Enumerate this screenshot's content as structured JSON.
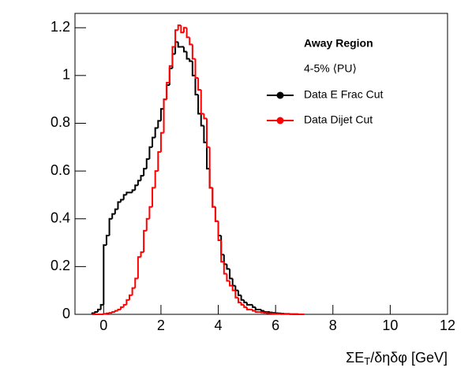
{
  "chart_data": {
    "type": "histogram",
    "x_label": [
      "ΣE",
      "T",
      "/δηδφ [GeV]"
    ],
    "legend_title": "Away Region",
    "legend_subtitle": "4-5% ⟨PU⟩",
    "xlim": [
      -1,
      12
    ],
    "xticks": [
      0,
      2,
      4,
      6,
      8,
      10,
      12
    ],
    "ylim": [
      0,
      1.26
    ],
    "yticks": [
      0,
      0.2,
      0.4,
      0.6,
      0.8,
      1,
      1.2
    ],
    "bins": [
      -0.4,
      -0.3,
      -0.2,
      -0.1,
      0,
      0.1,
      0.2,
      0.3,
      0.4,
      0.5,
      0.6,
      0.7,
      0.8,
      0.9,
      1,
      1.1,
      1.2,
      1.3,
      1.4,
      1.5,
      1.6,
      1.7,
      1.8,
      1.9,
      2,
      2.1,
      2.2,
      2.3,
      2.4,
      2.5,
      2.6,
      2.7,
      2.8,
      2.9,
      3,
      3.1,
      3.2,
      3.3,
      3.4,
      3.5,
      3.6,
      3.7,
      3.8,
      3.9,
      4,
      4.1,
      4.2,
      4.3,
      4.4,
      4.5,
      4.6,
      4.7,
      4.8,
      4.9,
      5,
      5.1,
      5.2,
      5.3,
      5.4,
      5.5,
      5.6,
      5.7,
      5.8,
      5.9,
      6,
      6.1,
      6.2,
      6.3,
      6.4,
      6.5,
      6.6,
      6.7,
      6.8,
      6.9,
      7
    ],
    "series": [
      {
        "name": "Data E Frac Cut",
        "color": "#000000",
        "values": [
          0.005,
          0.01,
          0.02,
          0.04,
          0.29,
          0.33,
          0.4,
          0.42,
          0.44,
          0.47,
          0.48,
          0.5,
          0.51,
          0.51,
          0.52,
          0.54,
          0.56,
          0.58,
          0.61,
          0.65,
          0.7,
          0.74,
          0.78,
          0.81,
          0.86,
          0.9,
          0.96,
          1.03,
          1.09,
          1.14,
          1.12,
          1.12,
          1.1,
          1.07,
          1.06,
          1.0,
          0.92,
          0.84,
          0.79,
          0.72,
          0.61,
          0.53,
          0.45,
          0.39,
          0.33,
          0.25,
          0.21,
          0.19,
          0.15,
          0.12,
          0.1,
          0.08,
          0.06,
          0.05,
          0.04,
          0.04,
          0.03,
          0.02,
          0.02,
          0.015,
          0.01,
          0.01,
          0.008,
          0.006,
          0.005,
          0.004,
          0.003,
          0.002,
          0.002,
          0.001,
          0.001,
          0.001,
          0,
          0
        ]
      },
      {
        "name": "Data Dijet Cut",
        "color": "#ff0000",
        "values": [
          0,
          0,
          0,
          0,
          0.002,
          0.004,
          0.006,
          0.01,
          0.015,
          0.02,
          0.03,
          0.04,
          0.06,
          0.08,
          0.11,
          0.15,
          0.24,
          0.26,
          0.35,
          0.4,
          0.45,
          0.53,
          0.6,
          0.68,
          0.76,
          0.9,
          0.97,
          1.04,
          1.12,
          1.19,
          1.21,
          1.18,
          1.2,
          1.16,
          1.13,
          1.07,
          0.99,
          0.94,
          0.84,
          0.82,
          0.7,
          0.53,
          0.45,
          0.39,
          0.31,
          0.22,
          0.17,
          0.14,
          0.12,
          0.1,
          0.07,
          0.05,
          0.04,
          0.03,
          0.02,
          0.02,
          0.015,
          0.01,
          0.01,
          0.008,
          0.006,
          0.005,
          0.004,
          0.003,
          0.002,
          0.002,
          0.001,
          0.001,
          0.001,
          0.001,
          0,
          0,
          0,
          0
        ]
      }
    ]
  }
}
